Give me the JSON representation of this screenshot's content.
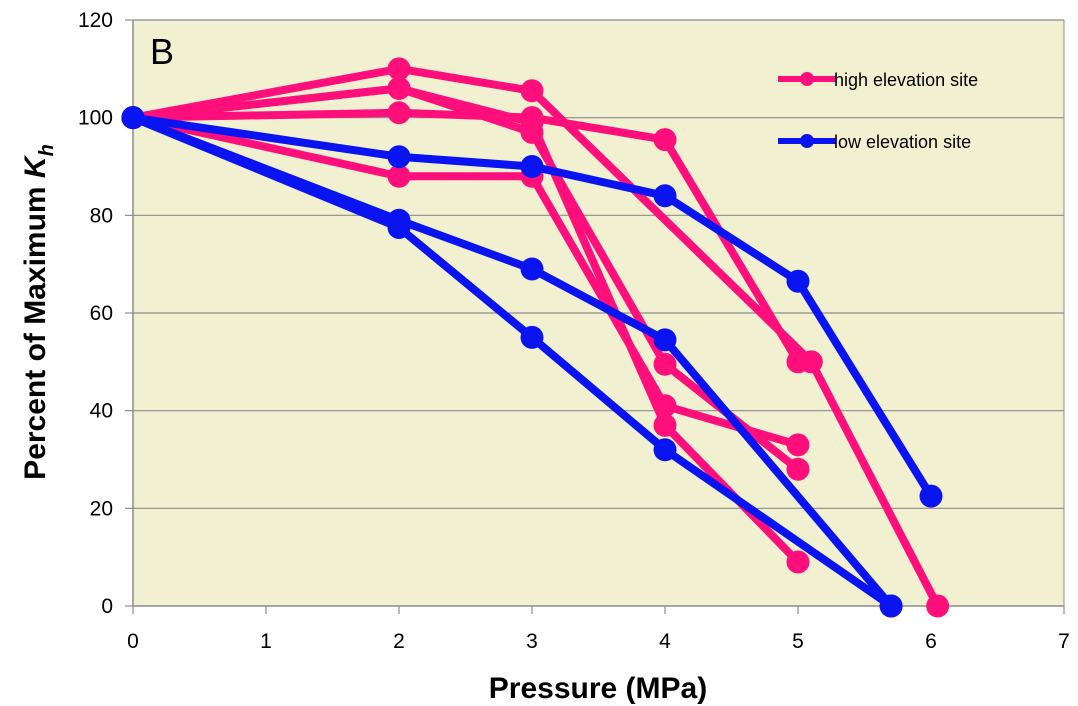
{
  "chart_data": {
    "type": "line",
    "panel_label": "B",
    "xlabel": "Pressure (MPa)",
    "ylabel_main": "Percent of Maximum ",
    "ylabel_italic": "K",
    "ylabel_sub": "h",
    "xlim": [
      0,
      7
    ],
    "ylim": [
      0,
      120
    ],
    "xticks": [
      "0",
      "1",
      "2",
      "3",
      "4",
      "5",
      "6",
      "7"
    ],
    "yticks": [
      "0",
      "20",
      "40",
      "60",
      "80",
      "100",
      "120"
    ],
    "grid": "horizontal",
    "plot_background": "#f1f1d2",
    "legend_position": "top-right",
    "legend": [
      {
        "label": "high elevation site",
        "color": "#ff0f7b"
      },
      {
        "label": "low elevation site",
        "color": "#0a14f0"
      }
    ],
    "series": [
      {
        "group": "high elevation site",
        "color": "#ff0f7b",
        "points": [
          [
            0,
            100
          ],
          [
            2,
            110
          ],
          [
            3,
            105.5
          ],
          [
            5.1,
            50
          ],
          [
            6.05,
            0
          ]
        ]
      },
      {
        "group": "high elevation site",
        "color": "#ff0f7b",
        "points": [
          [
            0,
            100
          ],
          [
            2,
            106
          ],
          [
            3,
            97
          ],
          [
            4,
            49.5
          ],
          [
            5,
            28
          ]
        ]
      },
      {
        "group": "high elevation site",
        "color": "#ff0f7b",
        "points": [
          [
            0,
            100
          ],
          [
            2,
            101
          ],
          [
            3,
            100
          ],
          [
            4,
            95.5
          ],
          [
            5,
            50
          ]
        ]
      },
      {
        "group": "high elevation site",
        "color": "#ff0f7b",
        "points": [
          [
            0,
            100
          ],
          [
            2,
            88
          ],
          [
            3,
            88
          ],
          [
            4,
            41
          ],
          [
            5,
            33
          ]
        ]
      },
      {
        "group": "high elevation site",
        "color": "#ff0f7b",
        "points": [
          [
            0,
            100
          ],
          [
            2,
            106
          ],
          [
            3,
            99
          ],
          [
            4,
            37
          ],
          [
            5,
            9
          ]
        ]
      },
      {
        "group": "low elevation site",
        "color": "#0a14f0",
        "points": [
          [
            0,
            100
          ],
          [
            2,
            92
          ],
          [
            3,
            90
          ],
          [
            4,
            84
          ],
          [
            5,
            66.5
          ],
          [
            6,
            22.5
          ]
        ]
      },
      {
        "group": "low elevation site",
        "color": "#0a14f0",
        "points": [
          [
            0,
            100
          ],
          [
            2,
            79
          ],
          [
            3,
            69
          ],
          [
            4,
            54.5
          ],
          [
            5.7,
            0
          ]
        ]
      },
      {
        "group": "low elevation site",
        "color": "#0a14f0",
        "points": [
          [
            0,
            100
          ],
          [
            2,
            77.5
          ],
          [
            3,
            55
          ],
          [
            4,
            32
          ],
          [
            5.7,
            0
          ]
        ]
      }
    ]
  }
}
